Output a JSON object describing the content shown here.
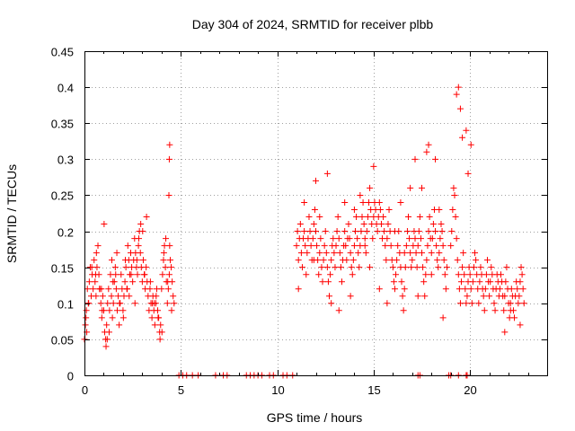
{
  "chart_data": {
    "type": "scatter",
    "title": "Day 304 of 2024, SRMTID for receiver plbb",
    "xlabel": "GPS time / hours",
    "ylabel": "SRMTID / TECUs",
    "xlim": [
      0,
      24
    ],
    "ylim": [
      0,
      0.45
    ],
    "xticks": [
      0,
      5,
      10,
      15,
      20
    ],
    "xtick_labels": [
      "0",
      "5",
      "10",
      "15",
      "20"
    ],
    "yticks": [
      0,
      0.05,
      0.1,
      0.15,
      0.2,
      0.25,
      0.3,
      0.35,
      0.4,
      0.45
    ],
    "ytick_labels": [
      "0",
      "0.05",
      "0.1",
      "0.15",
      "0.2",
      "0.25",
      "0.3",
      "0.35",
      "0.4",
      "0.45"
    ],
    "grid": true,
    "marker": "+",
    "marker_color": "#ff0000",
    "series": [
      {
        "name": "SRMTID",
        "x": [
          0.0,
          0.05,
          0.1,
          0.15,
          0.2,
          0.25,
          0.3,
          0.35,
          0.4,
          0.45,
          0.5,
          0.55,
          0.6,
          0.65,
          0.7,
          0.75,
          0.8,
          0.85,
          0.9,
          0.95,
          1.0,
          1.05,
          1.1,
          1.15,
          1.2,
          1.25,
          1.3,
          1.35,
          1.4,
          1.45,
          1.5,
          1.55,
          1.6,
          1.65,
          1.7,
          1.75,
          1.8,
          1.85,
          1.9,
          1.95,
          2.0,
          2.05,
          2.1,
          2.15,
          2.2,
          2.25,
          2.3,
          2.35,
          2.4,
          2.45,
          2.5,
          2.55,
          2.6,
          2.65,
          2.7,
          2.75,
          2.8,
          2.85,
          2.9,
          2.95,
          3.0,
          3.05,
          3.1,
          3.15,
          3.2,
          3.25,
          3.3,
          3.35,
          3.4,
          3.45,
          3.5,
          3.55,
          3.6,
          3.65,
          3.7,
          3.75,
          3.8,
          3.85,
          3.9,
          3.95,
          4.0,
          4.05,
          4.1,
          4.15,
          4.2,
          4.25,
          4.3,
          4.35,
          4.4,
          4.45,
          4.5,
          4.55,
          4.6,
          4.65,
          0.08,
          0.22,
          0.38,
          0.62,
          0.78,
          0.92,
          1.12,
          1.28,
          1.42,
          1.62,
          1.82,
          2.02,
          2.22,
          2.42,
          2.62,
          2.82,
          3.02,
          3.22,
          3.42,
          3.62,
          3.82,
          4.02,
          4.22,
          4.42,
          4.38,
          4.4,
          4.42,
          0.12,
          0.58,
          0.88,
          1.02,
          1.18,
          1.48,
          1.68,
          2.12,
          2.32,
          2.72,
          2.92,
          3.12,
          3.52,
          3.72,
          3.92,
          4.12,
          4.32,
          4.52,
          11.0,
          11.05,
          11.1,
          11.15,
          11.2,
          11.25,
          11.3,
          11.35,
          11.4,
          11.45,
          11.5,
          11.55,
          11.6,
          11.65,
          11.7,
          11.75,
          11.8,
          11.85,
          11.9,
          11.95,
          12.0,
          12.05,
          12.1,
          12.15,
          12.2,
          12.25,
          12.3,
          12.35,
          12.4,
          12.45,
          12.5,
          12.55,
          12.6,
          12.65,
          12.7,
          12.75,
          12.8,
          12.85,
          12.9,
          12.95,
          13.0,
          13.05,
          13.1,
          13.15,
          13.2,
          13.25,
          13.3,
          13.35,
          13.4,
          13.45,
          13.5,
          13.55,
          13.6,
          13.65,
          13.7,
          13.75,
          13.8,
          13.85,
          13.9,
          13.95,
          14.0,
          14.05,
          14.1,
          14.15,
          14.2,
          14.25,
          14.3,
          14.35,
          14.4,
          14.45,
          14.5,
          14.55,
          14.6,
          14.65,
          14.7,
          14.75,
          14.8,
          14.85,
          14.9,
          14.95,
          15.0,
          15.05,
          15.1,
          15.15,
          15.2,
          15.25,
          15.3,
          15.35,
          15.4,
          15.45,
          15.5,
          15.55,
          15.6,
          15.65,
          15.7,
          15.75,
          15.8,
          15.85,
          15.9,
          15.95,
          16.0,
          16.05,
          16.1,
          16.15,
          16.2,
          16.25,
          16.3,
          16.35,
          16.4,
          16.45,
          16.5,
          16.55,
          16.6,
          16.65,
          16.7,
          16.75,
          16.8,
          16.85,
          16.9,
          16.95,
          17.0,
          17.05,
          17.1,
          17.15,
          17.2,
          17.25,
          17.3,
          17.35,
          17.4,
          17.45,
          17.5,
          17.55,
          17.6,
          17.65,
          17.7,
          17.75,
          17.8,
          17.85,
          17.9,
          17.95,
          18.0,
          18.05,
          18.1,
          18.15,
          18.2,
          18.25,
          18.3,
          18.35,
          18.4,
          18.45,
          18.5,
          18.55,
          18.6,
          18.65,
          18.7,
          18.75,
          18.8,
          19.0,
          19.05,
          19.1,
          19.15,
          19.2,
          19.25,
          19.3,
          19.35,
          19.4,
          19.45,
          19.5,
          19.55,
          19.6,
          19.65,
          19.7,
          19.75,
          19.8,
          19.85,
          19.9,
          19.95,
          20.0,
          20.05,
          20.1,
          20.15,
          20.2,
          20.25,
          20.3,
          20.35,
          20.4,
          20.45,
          20.5,
          20.55,
          20.6,
          20.65,
          20.7,
          20.75,
          20.8,
          20.85,
          20.9,
          20.95,
          21.0,
          21.05,
          21.1,
          21.15,
          21.2,
          21.25,
          21.3,
          21.35,
          21.4,
          21.45,
          21.5,
          21.55,
          21.6,
          21.65,
          21.7,
          21.75,
          21.8,
          21.85,
          21.9,
          21.95,
          22.0,
          22.05,
          22.1,
          22.15,
          22.2,
          22.25,
          22.3,
          22.35,
          22.4,
          22.45,
          22.5,
          22.55,
          22.6,
          22.65,
          22.7,
          22.75,
          22.8,
          11.4,
          12.0,
          12.2,
          12.6,
          13.5,
          14.3,
          14.55,
          15.0,
          16.1,
          16.4,
          16.9,
          17.15,
          17.5,
          17.75,
          17.85,
          18.2,
          18.4,
          19.3,
          19.4,
          19.5,
          19.6,
          19.8,
          19.9,
          20.05,
          11.1,
          11.9,
          12.8,
          13.2,
          13.8,
          14.0,
          14.8,
          15.3,
          15.7,
          16.6,
          17.3,
          18.0,
          18.6,
          21.8,
          22.1,
          22.6,
          4.9,
          5.1,
          5.3,
          5.6,
          5.9,
          6.8,
          7.2,
          7.4,
          8.4,
          8.6,
          8.8,
          9.0,
          9.2,
          9.6,
          9.8,
          10.3,
          10.5,
          10.8,
          17.3,
          17.4,
          18.9,
          19.0,
          19.4,
          19.8,
          19.85
        ],
        "y": [
          0.05,
          0.07,
          0.09,
          0.12,
          0.1,
          0.13,
          0.15,
          0.11,
          0.14,
          0.12,
          0.16,
          0.13,
          0.11,
          0.15,
          0.18,
          0.14,
          0.12,
          0.1,
          0.08,
          0.11,
          0.09,
          0.06,
          0.05,
          0.07,
          0.1,
          0.12,
          0.09,
          0.14,
          0.11,
          0.08,
          0.1,
          0.13,
          0.15,
          0.12,
          0.09,
          0.11,
          0.07,
          0.1,
          0.14,
          0.12,
          0.09,
          0.11,
          0.13,
          0.15,
          0.12,
          0.18,
          0.16,
          0.14,
          0.17,
          0.15,
          0.13,
          0.16,
          0.19,
          0.17,
          0.15,
          0.14,
          0.18,
          0.2,
          0.17,
          0.15,
          0.13,
          0.16,
          0.14,
          0.12,
          0.15,
          0.13,
          0.11,
          0.09,
          0.12,
          0.1,
          0.08,
          0.11,
          0.09,
          0.07,
          0.1,
          0.12,
          0.09,
          0.08,
          0.06,
          0.07,
          0.12,
          0.14,
          0.16,
          0.18,
          0.15,
          0.13,
          0.1,
          0.12,
          0.14,
          0.16,
          0.15,
          0.13,
          0.11,
          0.1,
          0.08,
          0.1,
          0.15,
          0.17,
          0.12,
          0.09,
          0.04,
          0.06,
          0.16,
          0.14,
          0.1,
          0.08,
          0.12,
          0.14,
          0.1,
          0.19,
          0.2,
          0.22,
          0.13,
          0.1,
          0.08,
          0.06,
          0.19,
          0.18,
          0.25,
          0.3,
          0.32,
          0.06,
          0.14,
          0.12,
          0.21,
          0.05,
          0.13,
          0.17,
          0.16,
          0.11,
          0.16,
          0.21,
          0.14,
          0.1,
          0.11,
          0.05,
          0.17,
          0.13,
          0.09,
          0.18,
          0.2,
          0.16,
          0.19,
          0.21,
          0.17,
          0.15,
          0.19,
          0.2,
          0.18,
          0.14,
          0.17,
          0.19,
          0.22,
          0.2,
          0.18,
          0.16,
          0.19,
          0.21,
          0.23,
          0.2,
          0.18,
          0.16,
          0.14,
          0.17,
          0.19,
          0.15,
          0.13,
          0.16,
          0.18,
          0.2,
          0.17,
          0.15,
          0.13,
          0.11,
          0.14,
          0.16,
          0.18,
          0.19,
          0.17,
          0.15,
          0.18,
          0.2,
          0.22,
          0.19,
          0.17,
          0.15,
          0.13,
          0.16,
          0.18,
          0.2,
          0.18,
          0.16,
          0.19,
          0.21,
          0.19,
          0.17,
          0.15,
          0.14,
          0.16,
          0.18,
          0.2,
          0.22,
          0.19,
          0.17,
          0.15,
          0.18,
          0.2,
          0.22,
          0.24,
          0.21,
          0.19,
          0.17,
          0.2,
          0.22,
          0.24,
          0.26,
          0.23,
          0.21,
          0.19,
          0.22,
          0.24,
          0.23,
          0.21,
          0.2,
          0.22,
          0.24,
          0.23,
          0.21,
          0.19,
          0.22,
          0.2,
          0.18,
          0.16,
          0.19,
          0.21,
          0.23,
          0.2,
          0.18,
          0.16,
          0.15,
          0.13,
          0.12,
          0.14,
          0.16,
          0.18,
          0.2,
          0.17,
          0.15,
          0.13,
          0.11,
          0.09,
          0.12,
          0.15,
          0.18,
          0.2,
          0.22,
          0.19,
          0.17,
          0.15,
          0.16,
          0.18,
          0.2,
          0.19,
          0.17,
          0.15,
          0.18,
          0.2,
          0.22,
          0.19,
          0.17,
          0.15,
          0.13,
          0.11,
          0.14,
          0.16,
          0.18,
          0.2,
          0.22,
          0.19,
          0.17,
          0.19,
          0.21,
          0.23,
          0.2,
          0.18,
          0.16,
          0.15,
          0.17,
          0.19,
          0.21,
          0.2,
          0.18,
          0.16,
          0.14,
          0.12,
          0.15,
          0.18,
          0.2,
          0.23,
          0.26,
          0.25,
          0.22,
          0.19,
          0.16,
          0.14,
          0.12,
          0.1,
          0.13,
          0.15,
          0.17,
          0.14,
          0.12,
          0.1,
          0.11,
          0.13,
          0.15,
          0.14,
          0.12,
          0.1,
          0.13,
          0.15,
          0.17,
          0.16,
          0.14,
          0.12,
          0.1,
          0.13,
          0.15,
          0.14,
          0.12,
          0.11,
          0.09,
          0.12,
          0.14,
          0.16,
          0.13,
          0.11,
          0.13,
          0.15,
          0.14,
          0.12,
          0.1,
          0.09,
          0.12,
          0.14,
          0.13,
          0.11,
          0.12,
          0.14,
          0.13,
          0.11,
          0.09,
          0.11,
          0.13,
          0.15,
          0.12,
          0.1,
          0.08,
          0.1,
          0.12,
          0.11,
          0.09,
          0.08,
          0.11,
          0.13,
          0.12,
          0.1,
          0.11,
          0.13,
          0.15,
          0.14,
          0.12,
          0.1,
          0.24,
          0.27,
          0.22,
          0.28,
          0.24,
          0.25,
          0.18,
          0.29,
          0.2,
          0.24,
          0.26,
          0.3,
          0.26,
          0.31,
          0.32,
          0.3,
          0.23,
          0.39,
          0.4,
          0.37,
          0.33,
          0.34,
          0.28,
          0.32,
          0.12,
          0.16,
          0.1,
          0.09,
          0.11,
          0.23,
          0.15,
          0.12,
          0.1,
          0.17,
          0.11,
          0.14,
          0.08,
          0.06,
          0.09,
          0.07,
          0,
          0,
          0,
          0,
          0,
          0,
          0,
          0,
          0,
          0,
          0,
          0,
          0,
          0,
          0,
          0,
          0,
          0,
          0,
          0,
          0,
          0,
          0,
          0,
          0
        ]
      }
    ]
  }
}
